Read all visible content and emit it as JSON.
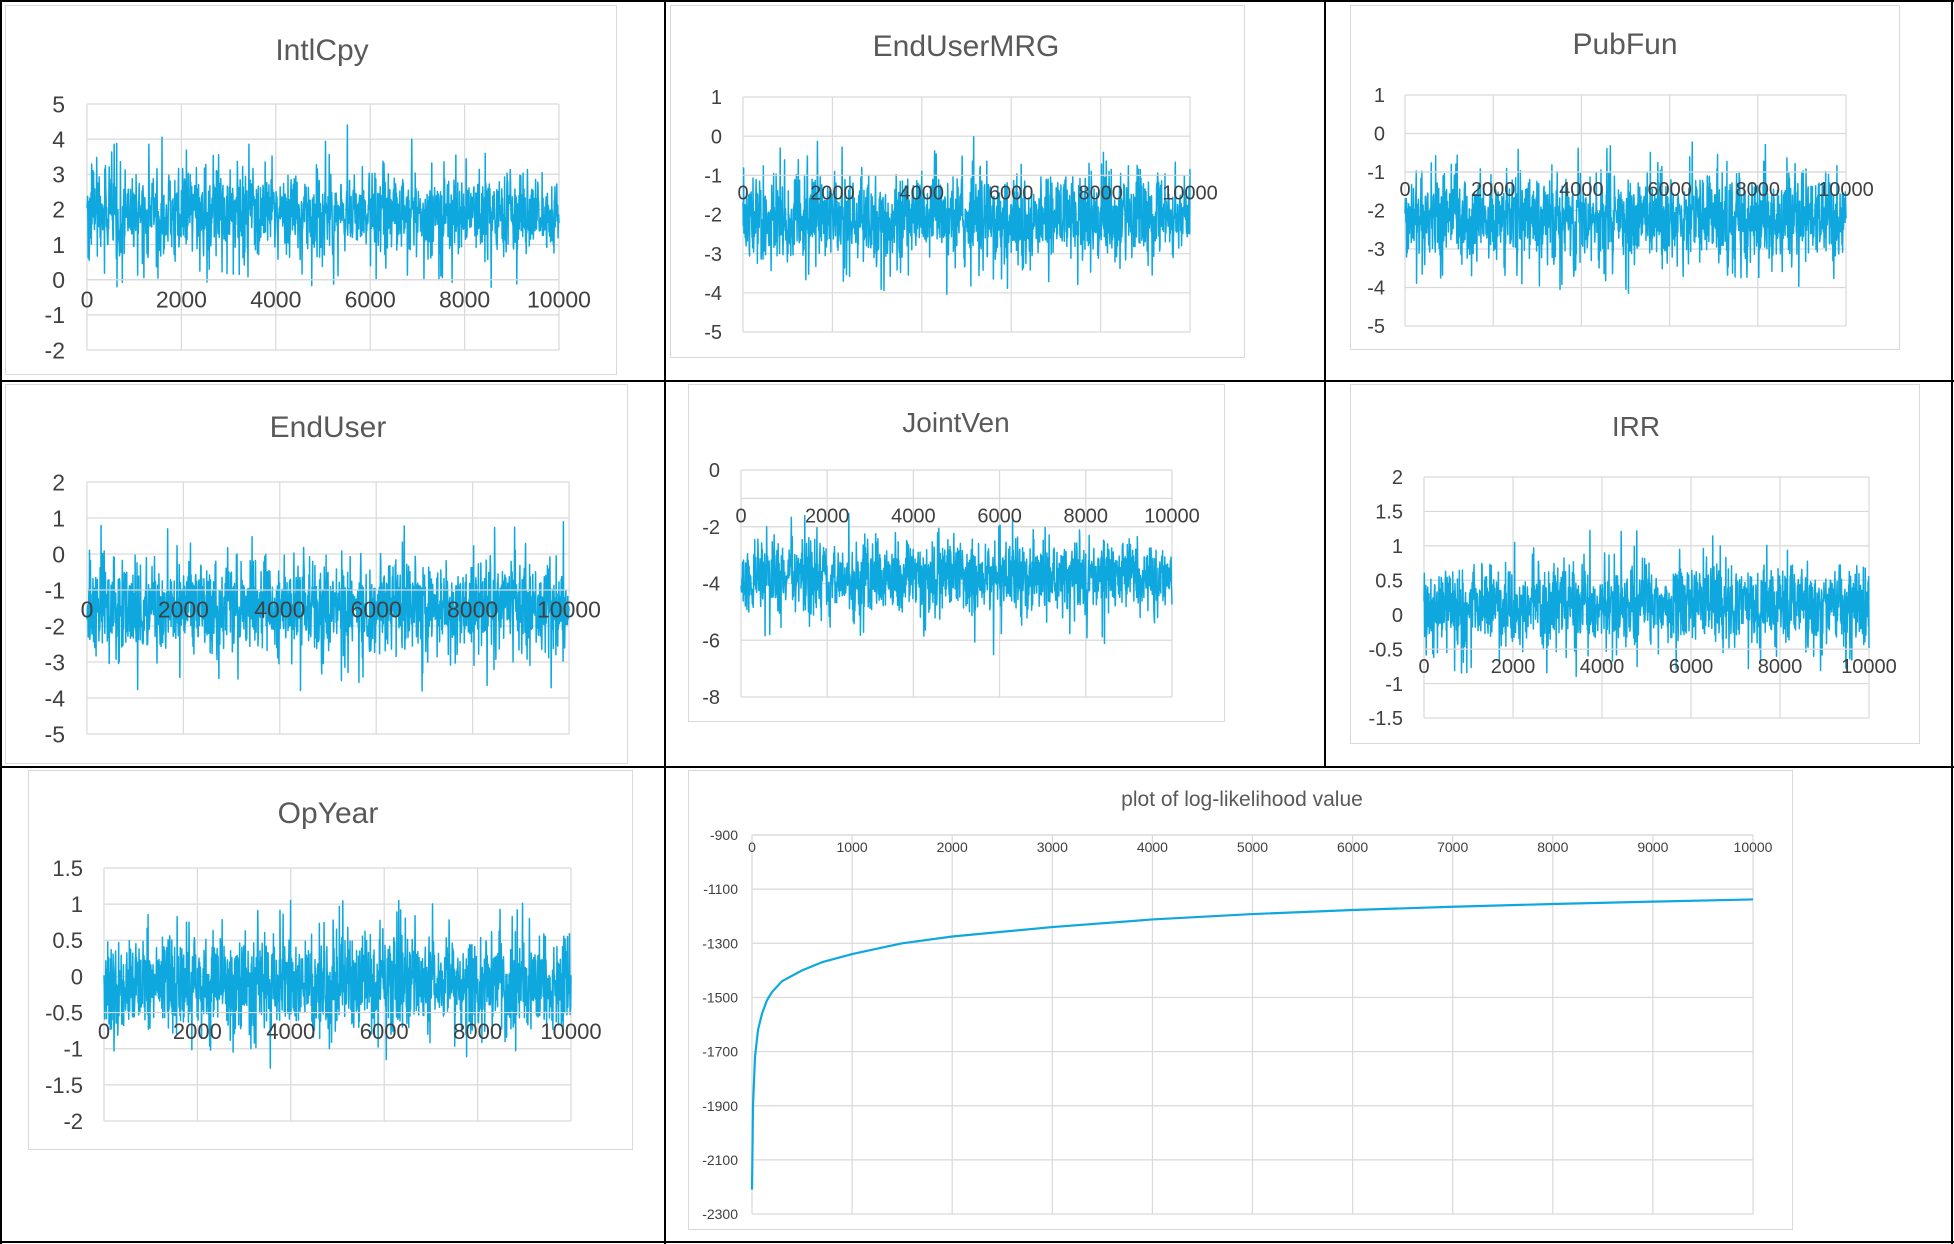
{
  "colors": {
    "series": "#0ea8df",
    "grid": "#d9d9d9",
    "frame": "#000000",
    "text": "#404040",
    "title": "#595959"
  },
  "chart_data": [
    {
      "type": "line",
      "title": "IntlCpy",
      "xlabel": "",
      "ylabel": "",
      "xlim": [
        0,
        10000
      ],
      "ylim": [
        -2,
        5
      ],
      "x_ticks": [
        0,
        2000,
        4000,
        6000,
        8000,
        10000
      ],
      "y_ticks": [
        -2,
        -1,
        0,
        1,
        2,
        3,
        4,
        5
      ],
      "x_axis_at": 0,
      "grid": true,
      "legend": "none",
      "trace": {
        "mean": 1.9,
        "sd": 0.6,
        "min": -0.6,
        "max": 4.4,
        "n_samples": 10000
      }
    },
    {
      "type": "line",
      "title": "EndUserMRG",
      "xlabel": "",
      "ylabel": "",
      "xlim": [
        0,
        10000
      ],
      "ylim": [
        -5,
        1
      ],
      "x_ticks": [
        0,
        2000,
        4000,
        6000,
        8000,
        10000
      ],
      "y_ticks": [
        -5,
        -4,
        -3,
        -2,
        -1,
        0,
        1
      ],
      "x_axis_at": -1,
      "grid": true,
      "legend": "none",
      "trace": {
        "mean": -2.1,
        "sd": 0.55,
        "min": -4.3,
        "max": 0.3,
        "n_samples": 10000
      }
    },
    {
      "type": "line",
      "title": "PubFun",
      "xlabel": "",
      "ylabel": "",
      "xlim": [
        0,
        10000
      ],
      "ylim": [
        -5,
        1
      ],
      "x_ticks": [
        0,
        2000,
        4000,
        6000,
        8000,
        10000
      ],
      "y_ticks": [
        -5,
        -4,
        -3,
        -2,
        -1,
        0,
        1
      ],
      "x_axis_at": -1,
      "grid": true,
      "legend": "none",
      "trace": {
        "mean": -2.2,
        "sd": 0.55,
        "min": -4.3,
        "max": 0.3,
        "n_samples": 10000
      }
    },
    {
      "type": "line",
      "title": "EndUser",
      "xlabel": "",
      "ylabel": "",
      "xlim": [
        0,
        10000
      ],
      "ylim": [
        -5,
        2
      ],
      "x_ticks": [
        0,
        2000,
        4000,
        6000,
        8000,
        10000
      ],
      "y_ticks": [
        -5,
        -4,
        -3,
        -2,
        -1,
        0,
        1,
        2
      ],
      "x_axis_at": -1,
      "grid": true,
      "legend": "none",
      "trace": {
        "mean": -1.5,
        "sd": 0.65,
        "min": -4.1,
        "max": 1.1,
        "n_samples": 10000
      }
    },
    {
      "type": "line",
      "title": "JointVen",
      "xlabel": "",
      "ylabel": "",
      "xlim": [
        0,
        10000
      ],
      "ylim": [
        -8,
        0
      ],
      "x_ticks": [
        0,
        2000,
        4000,
        6000,
        8000,
        10000
      ],
      "y_ticks": [
        -8,
        -6,
        -4,
        -2,
        0
      ],
      "x_axis_at": -1,
      "grid": true,
      "legend": "none",
      "trace": {
        "mean": -3.8,
        "sd": 0.65,
        "min": -6.5,
        "max": -1.3,
        "n_samples": 10000
      }
    },
    {
      "type": "line",
      "title": "IRR",
      "xlabel": "",
      "ylabel": "",
      "xlim": [
        0,
        10000
      ],
      "ylim": [
        -1.5,
        2
      ],
      "x_ticks": [
        0,
        2000,
        4000,
        6000,
        8000,
        10000
      ],
      "y_ticks": [
        -1.5,
        -1,
        -0.5,
        0,
        0.5,
        1,
        1.5,
        2
      ],
      "x_axis_at": -0.5,
      "grid": true,
      "legend": "none",
      "trace": {
        "mean": 0.15,
        "sd": 0.3,
        "min": -1.1,
        "max": 1.4,
        "n_samples": 10000
      }
    },
    {
      "type": "line",
      "title": "OpYear",
      "xlabel": "",
      "ylabel": "",
      "xlim": [
        0,
        10000
      ],
      "ylim": [
        -2,
        1.5
      ],
      "x_ticks": [
        0,
        2000,
        4000,
        6000,
        8000,
        10000
      ],
      "y_ticks": [
        -2,
        -1.5,
        -1,
        -0.5,
        0,
        0.5,
        1,
        1.5
      ],
      "x_axis_at": -0.5,
      "grid": true,
      "legend": "none",
      "trace": {
        "mean": -0.1,
        "sd": 0.33,
        "min": -1.45,
        "max": 1.05,
        "n_samples": 10000
      }
    },
    {
      "type": "line",
      "title": "plot of log-likelihood value",
      "xlabel": "",
      "ylabel": "",
      "xlim": [
        0,
        10000
      ],
      "ylim": [
        -2300,
        -900
      ],
      "x_ticks": [
        0,
        1000,
        2000,
        3000,
        4000,
        5000,
        6000,
        7000,
        8000,
        9000,
        10000
      ],
      "y_ticks": [
        -2300,
        -2100,
        -1900,
        -1700,
        -1500,
        -1300,
        -1100,
        -900
      ],
      "x_axis_at": -900,
      "grid": true,
      "legend": "none",
      "x": [
        0,
        10,
        30,
        60,
        100,
        150,
        200,
        300,
        500,
        700,
        1000,
        1500,
        2000,
        3000,
        4000,
        5000,
        6000,
        7000,
        8000,
        9000,
        10000
      ],
      "values": [
        -2210,
        -1900,
        -1720,
        -1620,
        -1560,
        -1510,
        -1480,
        -1440,
        -1400,
        -1370,
        -1340,
        -1300,
        -1275,
        -1240,
        -1212,
        -1192,
        -1177,
        -1165,
        -1155,
        -1146,
        -1138
      ]
    }
  ]
}
